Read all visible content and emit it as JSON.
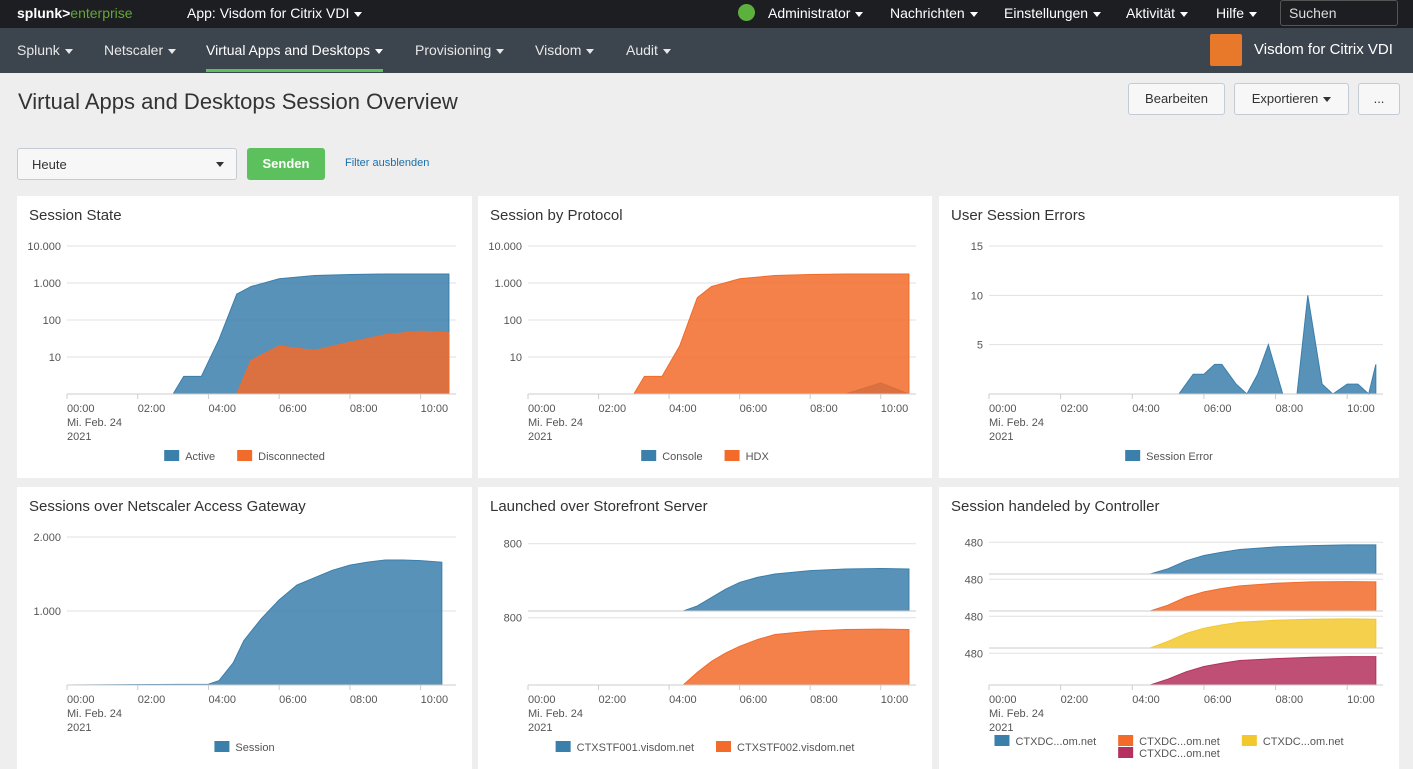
{
  "header": {
    "logo": [
      "splunk>",
      "enterprise"
    ],
    "app": "App: Visdom for Citrix VDI",
    "menu": [
      "Administrator",
      "Nachrichten",
      "Einstellungen",
      "Aktivität",
      "Hilfe"
    ],
    "search": "Suchen"
  },
  "nav": {
    "items": [
      "Splunk",
      "Netscaler",
      "Virtual Apps and Desktops",
      "Provisioning",
      "Visdom",
      "Audit"
    ],
    "app_title": "Visdom for Citrix VDI"
  },
  "page": {
    "title": "Virtual Apps and Desktops Session Overview",
    "buttons": [
      "Bearbeiten",
      "Exportieren",
      "..."
    ]
  },
  "filters": {
    "time": "Heute",
    "submit": "Senden",
    "hide": "Filter ausblenden"
  },
  "chart_data": [
    {
      "type": "area",
      "title": "Session State",
      "yscale": "log",
      "ylim": [
        1,
        10000
      ],
      "yticks": [
        10,
        100,
        {
          "value": 1000,
          "label": "1.000"
        },
        {
          "value": 10000,
          "label": "10.000"
        }
      ],
      "grid": true,
      "legend": "bottom",
      "xlim": [
        0,
        11
      ],
      "xticks": [
        {
          "value": 0,
          "label": "00:00"
        },
        {
          "value": 2,
          "label": "02:00"
        },
        {
          "value": 4,
          "label": "04:00"
        },
        {
          "value": 6,
          "label": "06:00"
        },
        {
          "value": 8,
          "label": "08:00"
        },
        {
          "value": 10,
          "label": "10:00"
        }
      ],
      "x_date": [
        "Mi. Feb. 24",
        "2021"
      ],
      "x": [
        0,
        1,
        2,
        3,
        3.3,
        3.8,
        4.3,
        4.8,
        5.2,
        6,
        7,
        8,
        9,
        10,
        10.8
      ],
      "series": [
        {
          "name": "Active",
          "color": "#3b7fab",
          "values": [
            1,
            1,
            1,
            1,
            3,
            3,
            30,
            500,
            800,
            1300,
            1600,
            1700,
            1750,
            1750,
            1750
          ]
        },
        {
          "name": "Disconnected",
          "color": "#f26b2a",
          "values": [
            1,
            1,
            1,
            1,
            1,
            1,
            1,
            1,
            8,
            20,
            15,
            25,
            40,
            50,
            45
          ]
        }
      ]
    },
    {
      "type": "area",
      "title": "Session by Protocol",
      "yscale": "log",
      "ylim": [
        1,
        10000
      ],
      "yticks": [
        10,
        100,
        {
          "value": 1000,
          "label": "1.000"
        },
        {
          "value": 10000,
          "label": "10.000"
        }
      ],
      "grid": true,
      "legend": "bottom",
      "xlim": [
        0,
        11
      ],
      "xticks": [
        {
          "value": 0,
          "label": "00:00"
        },
        {
          "value": 2,
          "label": "02:00"
        },
        {
          "value": 4,
          "label": "04:00"
        },
        {
          "value": 6,
          "label": "06:00"
        },
        {
          "value": 8,
          "label": "08:00"
        },
        {
          "value": 10,
          "label": "10:00"
        }
      ],
      "x_date": [
        "Mi. Feb. 24",
        "2021"
      ],
      "x": [
        0,
        1,
        2,
        3,
        3.3,
        3.8,
        4.3,
        4.8,
        5.2,
        6,
        7,
        8,
        9,
        10,
        10.8
      ],
      "series": [
        {
          "name": "Console",
          "color": "#3b7fab",
          "values": [
            1,
            1,
            1,
            1,
            1,
            1,
            1,
            1,
            1,
            1,
            1,
            1,
            1,
            2,
            1
          ]
        },
        {
          "name": "HDX",
          "color": "#f26b2a",
          "values": [
            1,
            1,
            1,
            1,
            3,
            3,
            20,
            400,
            800,
            1300,
            1600,
            1700,
            1750,
            1750,
            1750
          ]
        }
      ]
    },
    {
      "type": "area",
      "title": "User Session Errors",
      "yscale": "linear",
      "ylim": [
        0,
        15
      ],
      "yticks": [
        5,
        10,
        15
      ],
      "grid": true,
      "legend": "bottom",
      "xlim": [
        0,
        11
      ],
      "xticks": [
        {
          "value": 0,
          "label": "00:00"
        },
        {
          "value": 2,
          "label": "02:00"
        },
        {
          "value": 4,
          "label": "04:00"
        },
        {
          "value": 6,
          "label": "06:00"
        },
        {
          "value": 8,
          "label": "08:00"
        },
        {
          "value": 10,
          "label": "10:00"
        }
      ],
      "x_date": [
        "Mi. Feb. 24",
        "2021"
      ],
      "x": [
        0,
        5.3,
        5.7,
        6,
        6.3,
        6.5,
        6.9,
        7.2,
        7.5,
        7.8,
        8.2,
        8.6,
        8.9,
        9.3,
        9.6,
        10,
        10.3,
        10.6,
        10.8
      ],
      "series": [
        {
          "name": "Session Error",
          "color": "#3b7fab",
          "values": [
            0,
            0,
            2,
            2,
            3,
            3,
            1,
            0,
            2,
            5,
            0,
            0,
            10,
            1,
            0,
            1,
            1,
            0,
            3
          ]
        }
      ]
    },
    {
      "type": "area",
      "title": "Sessions over Netscaler Access Gateway",
      "yscale": "linear",
      "ylim": [
        0,
        2000
      ],
      "yticks": [
        {
          "value": 1000,
          "label": "1.000"
        },
        {
          "value": 2000,
          "label": "2.000"
        }
      ],
      "grid": true,
      "legend": "bottom",
      "xlim": [
        0,
        11
      ],
      "xticks": [
        {
          "value": 0,
          "label": "00:00"
        },
        {
          "value": 2,
          "label": "02:00"
        },
        {
          "value": 4,
          "label": "04:00"
        },
        {
          "value": 6,
          "label": "06:00"
        },
        {
          "value": 8,
          "label": "08:00"
        },
        {
          "value": 10,
          "label": "10:00"
        }
      ],
      "x_date": [
        "Mi. Feb. 24",
        "2021"
      ],
      "x": [
        0,
        4,
        4.3,
        4.7,
        5,
        5.5,
        6,
        6.5,
        7,
        7.5,
        8,
        8.5,
        9,
        9.5,
        10,
        10.6
      ],
      "series": [
        {
          "name": "Session",
          "color": "#3b7fab",
          "values": [
            0,
            10,
            60,
            300,
            600,
            900,
            1150,
            1350,
            1450,
            1550,
            1620,
            1660,
            1690,
            1690,
            1680,
            1660
          ]
        }
      ]
    },
    {
      "type": "area",
      "title": "Launched over Storefront Server",
      "yscale": "linear",
      "split": true,
      "ylim": [
        0,
        880
      ],
      "yticks": [
        800
      ],
      "grid": true,
      "legend": "bottom",
      "xlim": [
        0,
        11
      ],
      "xticks": [
        {
          "value": 0,
          "label": "00:00"
        },
        {
          "value": 2,
          "label": "02:00"
        },
        {
          "value": 4,
          "label": "04:00"
        },
        {
          "value": 6,
          "label": "06:00"
        },
        {
          "value": 8,
          "label": "08:00"
        },
        {
          "value": 10,
          "label": "10:00"
        }
      ],
      "x_date": [
        "Mi. Feb. 24",
        "2021"
      ],
      "x": [
        0,
        4.4,
        4.8,
        5.2,
        5.6,
        6,
        6.5,
        7,
        8,
        9,
        10,
        10.8
      ],
      "series": [
        {
          "name": "CTXSTF001.visdom.net",
          "color": "#3b7fab",
          "values": [
            0,
            0,
            60,
            160,
            260,
            340,
            400,
            440,
            480,
            500,
            505,
            500
          ]
        },
        {
          "name": "CTXSTF002.visdom.net",
          "color": "#f26b2a",
          "values": [
            0,
            0,
            150,
            280,
            380,
            460,
            540,
            600,
            640,
            660,
            665,
            660
          ]
        }
      ]
    },
    {
      "type": "area",
      "title": "Session handeled by Controller",
      "yscale": "linear",
      "split": true,
      "ylim": [
        0,
        560
      ],
      "yticks": [
        480
      ],
      "grid": true,
      "legend": "bottom",
      "xlim": [
        0,
        11
      ],
      "xticks": [
        {
          "value": 0,
          "label": "00:00"
        },
        {
          "value": 2,
          "label": "02:00"
        },
        {
          "value": 4,
          "label": "04:00"
        },
        {
          "value": 6,
          "label": "06:00"
        },
        {
          "value": 8,
          "label": "08:00"
        },
        {
          "value": 10,
          "label": "10:00"
        }
      ],
      "x_date": [
        "Mi. Feb. 24",
        "2021"
      ],
      "x": [
        0,
        4.5,
        5,
        5.5,
        6,
        6.5,
        7,
        8,
        9,
        10,
        10.8
      ],
      "series": [
        {
          "name": "CTXDC...om.net",
          "color": "#3b7fab",
          "values": [
            0,
            0,
            80,
            200,
            280,
            330,
            370,
            410,
            430,
            440,
            440
          ]
        },
        {
          "name": "CTXDC...om.net",
          "color": "#f26b2a",
          "values": [
            0,
            0,
            90,
            210,
            290,
            340,
            380,
            420,
            440,
            445,
            440
          ]
        },
        {
          "name": "CTXDC...om.net",
          "color": "#f2c82e",
          "values": [
            0,
            0,
            100,
            220,
            300,
            350,
            390,
            420,
            435,
            440,
            435
          ]
        },
        {
          "name": "CTXDC...om.net",
          "color": "#b5305e",
          "values": [
            0,
            0,
            90,
            200,
            280,
            330,
            370,
            400,
            420,
            430,
            430
          ]
        }
      ]
    }
  ]
}
